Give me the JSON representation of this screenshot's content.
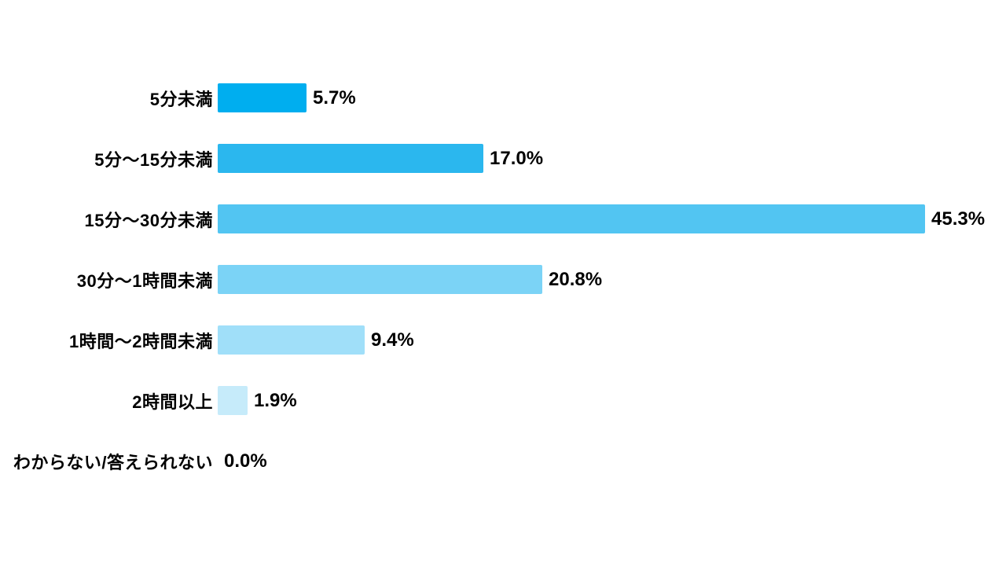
{
  "chart_data": {
    "type": "bar",
    "orientation": "horizontal",
    "title": "",
    "xlabel": "",
    "ylabel": "",
    "xlim": [
      0,
      50
    ],
    "grid": false,
    "legend": false,
    "categories": [
      "5分未満",
      "5分〜15分未満",
      "15分〜30分未満",
      "30分〜1時間未満",
      "1時間〜2時間未満",
      "2時間以上",
      "わからない/答えられない"
    ],
    "values": [
      5.7,
      17.0,
      45.3,
      20.8,
      9.4,
      1.9,
      0.0
    ],
    "value_labels": [
      "5.7%",
      "17.0%",
      "45.3%",
      "20.8%",
      "9.4%",
      "1.9%",
      "0.0%"
    ],
    "bar_colors": [
      "#00AEEF",
      "#2BB7EE",
      "#52C5F2",
      "#7BD3F6",
      "#A0DFF9",
      "#C6EBFA",
      "#FFFFFF"
    ],
    "text_color": "#000000",
    "background_color": "#FFFFFF"
  }
}
